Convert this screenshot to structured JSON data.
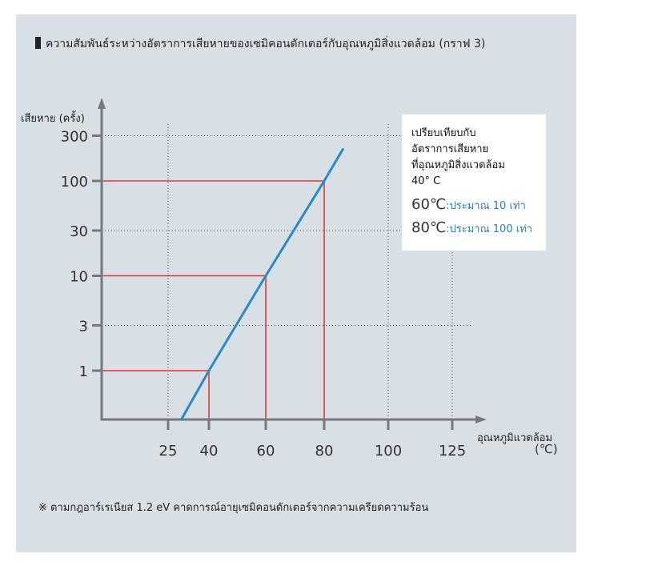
{
  "chart_data": {
    "type": "line",
    "title": "ความสัมพันธ์ระหว่างอัตราการเสียหายของเซมิคอนดักเตอร์กับอุณหภูมิสิ่งแวดล้อม (กราฟ 3)",
    "xlabel": "อุณหภูมิแวดล้อม",
    "xunit": "(℃)",
    "ylabel": "เสียหาย (ครั้ง)",
    "yscale": "log",
    "x_ticks": [
      25,
      40,
      60,
      80,
      100,
      125
    ],
    "y_ticks": [
      1,
      3,
      10,
      30,
      100,
      300
    ],
    "grid": "dotted",
    "series": [
      {
        "color": "#2a8ac6",
        "x": [
          29.7,
          40,
          60,
          80,
          86
        ],
        "y": [
          0.3,
          1,
          10,
          100,
          220
        ]
      }
    ],
    "reference_points": [
      {
        "x": 40,
        "y": 1
      },
      {
        "x": 60,
        "y": 10
      },
      {
        "x": 80,
        "y": 100
      }
    ],
    "reference_color": "#e0393b",
    "axis_color": "#75787c",
    "legend": {
      "heading": [
        "เปรียบเทียบกับ",
        "อัตราการเสียหาย",
        "ที่อุณหภูมิสิ่งแวดล้อม",
        "40°  C"
      ],
      "rows": [
        {
          "temp": "60℃",
          "value": ":ประมาณ 10 เท่า"
        },
        {
          "temp": "80℃",
          "value": ":ประมาณ 100 เท่า"
        }
      ]
    },
    "note": "※ ตามกฎอาร์เรเนียส 1.2 eV คาดการณ์อายุเซมิคอนดักเตอร์จากความเครียดความร้อน"
  }
}
